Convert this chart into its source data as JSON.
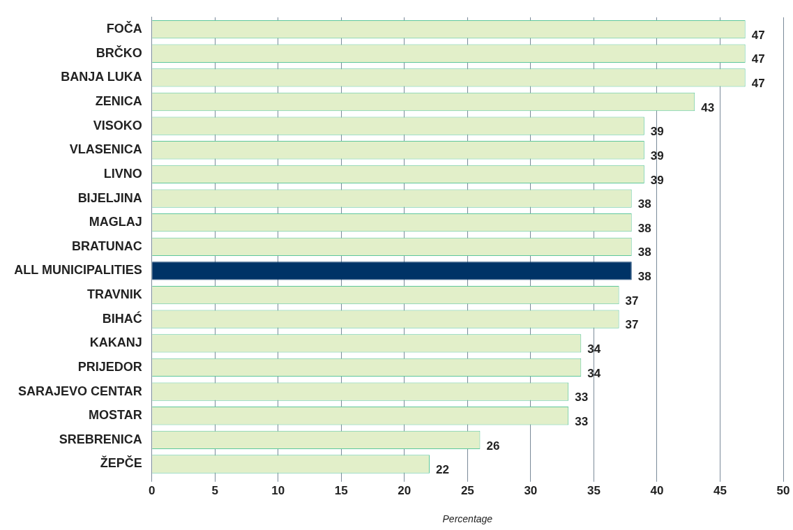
{
  "chart_data": {
    "type": "bar",
    "orientation": "horizontal",
    "xlabel": "Percentage",
    "categories": [
      "FOČA",
      "BRČKO",
      "BANJA LUKA",
      "ZENICA",
      "VISOKO",
      "VLASENICA",
      "LIVNO",
      "BIJELJINA",
      "MAGLAJ",
      "BRATUNAC",
      "ALL MUNICIPALITIES",
      "TRAVNIK",
      "BIHAĆ",
      "KAKANJ",
      "PRIJEDOR",
      "SARAJEVO CENTAR",
      "MOSTAR",
      "SREBRENICA",
      "ŽEPČE"
    ],
    "values": [
      47,
      47,
      47,
      43,
      39,
      39,
      39,
      38,
      38,
      38,
      38,
      37,
      37,
      34,
      34,
      33,
      33,
      26,
      22
    ],
    "colors": [
      "#e2efc9",
      "#e2efc9",
      "#e2efc9",
      "#e2efc9",
      "#e2efc9",
      "#e2efc9",
      "#e2efc9",
      "#e2efc9",
      "#e2efc9",
      "#e2efc9",
      "#003366",
      "#e2efc9",
      "#e2efc9",
      "#e2efc9",
      "#e2efc9",
      "#e2efc9",
      "#e2efc9",
      "#e2efc9",
      "#e2efc9"
    ],
    "xlim": [
      0,
      50
    ],
    "xticks": [
      0,
      5,
      10,
      15,
      20,
      25,
      30,
      35,
      40,
      45,
      50
    ],
    "grid": "x",
    "data_labels": true
  }
}
